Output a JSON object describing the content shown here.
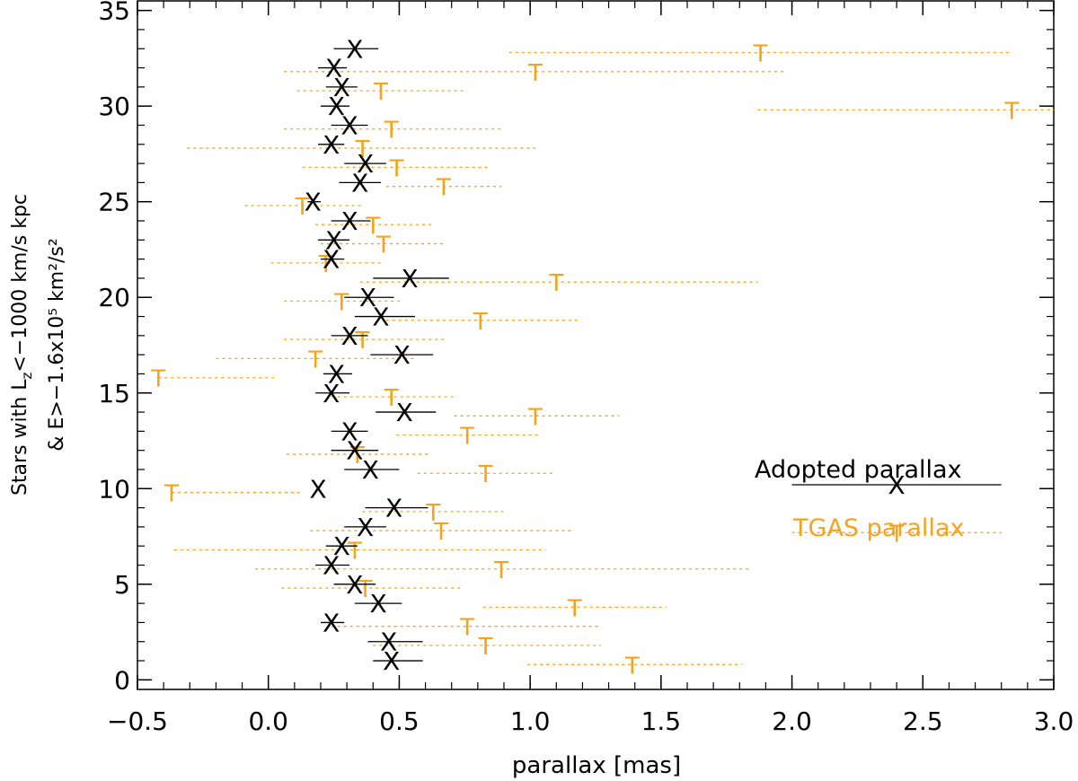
{
  "chart_data": {
    "type": "scatter",
    "xlabel": "parallax [mas]",
    "ylabel_line1": "Stars with L",
    "ylabel_line1_sub": "z",
    "ylabel_line1_rest": "<−1000 km/s kpc",
    "ylabel_line2": "& E>−1.6x10⁵ km²/s²",
    "xlim": [
      -0.5,
      3.0
    ],
    "ylim": [
      -0.5,
      35.5
    ],
    "xticks": [
      "−0.5",
      "0.0",
      "0.5",
      "1.0",
      "1.5",
      "2.0",
      "2.5",
      "3.0"
    ],
    "xtick_values": [
      -0.5,
      0.0,
      0.5,
      1.0,
      1.5,
      2.0,
      2.5,
      3.0
    ],
    "yticks": [
      "0",
      "5",
      "10",
      "15",
      "20",
      "25",
      "30",
      "35"
    ],
    "ytick_values": [
      0,
      5,
      10,
      15,
      20,
      25,
      30,
      35
    ],
    "colors": {
      "adopted": "#000000",
      "tgas": "#f5a31a"
    },
    "legend": {
      "position": "right",
      "adopted_label": "Adopted parallax",
      "tgas_label": "TGAS parallax"
    },
    "adopted_marker": "X",
    "tgas_marker": "T",
    "series": [
      {
        "name": "Adopted parallax",
        "style": "solid",
        "points": [
          {
            "y": 1,
            "x": 0.47,
            "lo": 0.4,
            "hi": 0.59
          },
          {
            "y": 2,
            "x": 0.46,
            "lo": 0.38,
            "hi": 0.59
          },
          {
            "y": 3,
            "x": 0.24,
            "lo": 0.2,
            "hi": 0.29
          },
          {
            "y": 4,
            "x": 0.42,
            "lo": 0.33,
            "hi": 0.51
          },
          {
            "y": 5,
            "x": 0.33,
            "lo": 0.25,
            "hi": 0.41
          },
          {
            "y": 6,
            "x": 0.24,
            "lo": 0.18,
            "hi": 0.31
          },
          {
            "y": 7,
            "x": 0.28,
            "lo": 0.22,
            "hi": 0.34
          },
          {
            "y": 8,
            "x": 0.37,
            "lo": 0.29,
            "hi": 0.45
          },
          {
            "y": 9,
            "x": 0.48,
            "lo": 0.37,
            "hi": 0.61
          },
          {
            "y": 10,
            "x": 0.19,
            "lo": 0.19,
            "hi": 0.19
          },
          {
            "y": 11,
            "x": 0.39,
            "lo": 0.29,
            "hi": 0.5
          },
          {
            "y": 12,
            "x": 0.33,
            "lo": 0.24,
            "hi": 0.42
          },
          {
            "y": 13,
            "x": 0.31,
            "lo": 0.24,
            "hi": 0.38
          },
          {
            "y": 14,
            "x": 0.52,
            "lo": 0.41,
            "hi": 0.64
          },
          {
            "y": 15,
            "x": 0.24,
            "lo": 0.18,
            "hi": 0.31
          },
          {
            "y": 16,
            "x": 0.26,
            "lo": 0.21,
            "hi": 0.32
          },
          {
            "y": 17,
            "x": 0.51,
            "lo": 0.39,
            "hi": 0.63
          },
          {
            "y": 18,
            "x": 0.31,
            "lo": 0.24,
            "hi": 0.38
          },
          {
            "y": 19,
            "x": 0.43,
            "lo": 0.33,
            "hi": 0.56
          },
          {
            "y": 20,
            "x": 0.38,
            "lo": 0.29,
            "hi": 0.48
          },
          {
            "y": 21,
            "x": 0.54,
            "lo": 0.4,
            "hi": 0.69
          },
          {
            "y": 22,
            "x": 0.24,
            "lo": 0.2,
            "hi": 0.29
          },
          {
            "y": 23,
            "x": 0.25,
            "lo": 0.19,
            "hi": 0.31
          },
          {
            "y": 24,
            "x": 0.31,
            "lo": 0.24,
            "hi": 0.39
          },
          {
            "y": 25,
            "x": 0.17,
            "lo": 0.15,
            "hi": 0.2
          },
          {
            "y": 26,
            "x": 0.35,
            "lo": 0.27,
            "hi": 0.43
          },
          {
            "y": 27,
            "x": 0.37,
            "lo": 0.29,
            "hi": 0.45
          },
          {
            "y": 28,
            "x": 0.24,
            "lo": 0.19,
            "hi": 0.29
          },
          {
            "y": 29,
            "x": 0.31,
            "lo": 0.24,
            "hi": 0.38
          },
          {
            "y": 30,
            "x": 0.26,
            "lo": 0.2,
            "hi": 0.31
          },
          {
            "y": 31,
            "x": 0.28,
            "lo": 0.22,
            "hi": 0.34
          },
          {
            "y": 32,
            "x": 0.25,
            "lo": 0.19,
            "hi": 0.3
          },
          {
            "y": 33,
            "x": 0.33,
            "lo": 0.25,
            "hi": 0.42
          }
        ]
      },
      {
        "name": "TGAS parallax",
        "style": "dotted",
        "points": [
          {
            "y": 0.8,
            "x": 1.39,
            "lo": 0.99,
            "hi": 1.81
          },
          {
            "y": 1.8,
            "x": 0.83,
            "lo": 0.4,
            "hi": 1.27
          },
          {
            "y": 2.8,
            "x": 0.76,
            "lo": 0.24,
            "hi": 1.27
          },
          {
            "y": 3.8,
            "x": 1.17,
            "lo": 0.82,
            "hi": 1.52
          },
          {
            "y": 4.8,
            "x": 0.37,
            "lo": 0.05,
            "hi": 0.74
          },
          {
            "y": 5.8,
            "x": 0.89,
            "lo": -0.05,
            "hi": 1.84
          },
          {
            "y": 6.8,
            "x": 0.33,
            "lo": -0.36,
            "hi": 1.06
          },
          {
            "y": 7.8,
            "x": 0.66,
            "lo": 0.16,
            "hi": 1.16
          },
          {
            "y": 8.8,
            "x": 0.63,
            "lo": 0.36,
            "hi": 0.91
          },
          {
            "y": 9.8,
            "x": -0.37,
            "lo": -0.37,
            "hi": 0.12
          },
          {
            "y": 10.8,
            "x": 0.83,
            "lo": 0.57,
            "hi": 1.09
          },
          {
            "y": 11.8,
            "x": 0.34,
            "lo": 0.07,
            "hi": 0.61
          },
          {
            "y": 12.8,
            "x": 0.76,
            "lo": 0.49,
            "hi": 1.03
          },
          {
            "y": 13.8,
            "x": 1.02,
            "lo": 0.71,
            "hi": 1.34
          },
          {
            "y": 14.8,
            "x": 0.47,
            "lo": 0.24,
            "hi": 0.71
          },
          {
            "y": 15.8,
            "x": -0.42,
            "lo": -0.42,
            "hi": 0.03
          },
          {
            "y": 16.8,
            "x": 0.18,
            "lo": -0.2,
            "hi": 0.56
          },
          {
            "y": 17.8,
            "x": 0.36,
            "lo": 0.06,
            "hi": 0.68
          },
          {
            "y": 18.8,
            "x": 0.81,
            "lo": 0.45,
            "hi": 1.18
          },
          {
            "y": 19.8,
            "x": 0.28,
            "lo": 0.06,
            "hi": 0.51
          },
          {
            "y": 20.8,
            "x": 1.1,
            "lo": 0.35,
            "hi": 1.87
          },
          {
            "y": 21.8,
            "x": 0.22,
            "lo": 0.01,
            "hi": 0.44
          },
          {
            "y": 22.8,
            "x": 0.44,
            "lo": 0.2,
            "hi": 0.68
          },
          {
            "y": 23.8,
            "x": 0.4,
            "lo": 0.18,
            "hi": 0.63
          },
          {
            "y": 24.8,
            "x": 0.13,
            "lo": -0.09,
            "hi": 0.36
          },
          {
            "y": 25.8,
            "x": 0.67,
            "lo": 0.45,
            "hi": 0.89
          },
          {
            "y": 26.8,
            "x": 0.49,
            "lo": 0.13,
            "hi": 0.85
          },
          {
            "y": 27.8,
            "x": 0.36,
            "lo": -0.31,
            "hi": 1.02
          },
          {
            "y": 28.8,
            "x": 0.47,
            "lo": 0.06,
            "hi": 0.89
          },
          {
            "y": 29.8,
            "x": 2.84,
            "lo": 1.87,
            "hi": 3.0
          },
          {
            "y": 30.8,
            "x": 0.43,
            "lo": 0.11,
            "hi": 0.76
          },
          {
            "y": 31.8,
            "x": 1.02,
            "lo": 0.06,
            "hi": 1.98
          },
          {
            "y": 32.8,
            "x": 1.88,
            "lo": 0.92,
            "hi": 2.84
          }
        ]
      }
    ],
    "legend_samples": {
      "adopted": {
        "y": 10.2,
        "x": 2.4,
        "lo": 2.0,
        "hi": 2.8
      },
      "tgas": {
        "y": 7.7,
        "x": 2.4,
        "lo": 2.0,
        "hi": 2.8
      }
    }
  }
}
